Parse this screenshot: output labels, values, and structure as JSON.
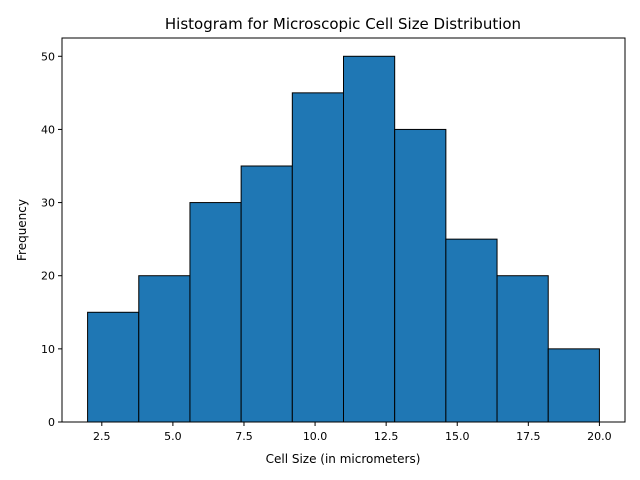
{
  "chart_data": {
    "type": "bar",
    "title": "Histogram for Microscopic Cell Size Distribution",
    "xlabel": "Cell Size (in micrometers)",
    "ylabel": "Frequency",
    "bin_edges": [
      2.0,
      3.8,
      5.6,
      7.4,
      9.2,
      11.0,
      12.8,
      14.6,
      16.4,
      18.2,
      20.0
    ],
    "values": [
      15,
      20,
      30,
      35,
      45,
      50,
      40,
      25,
      20,
      10
    ],
    "xlim": [
      1.1,
      20.9
    ],
    "ylim": [
      0,
      52.5
    ],
    "xticks": [
      2.5,
      5.0,
      7.5,
      10.0,
      12.5,
      15.0,
      17.5,
      20.0
    ],
    "xtick_labels": [
      "2.5",
      "5.0",
      "7.5",
      "10.0",
      "12.5",
      "15.0",
      "17.5",
      "20.0"
    ],
    "yticks": [
      0,
      10,
      20,
      30,
      40,
      50
    ],
    "ytick_labels": [
      "0",
      "10",
      "20",
      "30",
      "40",
      "50"
    ],
    "grid": false,
    "colors": {
      "bar_fill": "#1f77b4",
      "bar_edge": "#000000"
    }
  }
}
